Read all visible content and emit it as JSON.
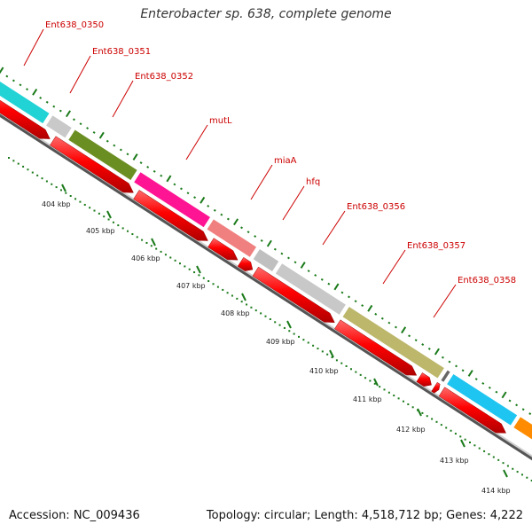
{
  "title": "Enterobacter sp. 638, complete genome",
  "footer": {
    "accession": "Accession: NC_009436",
    "summary": "Topology: circular; Length: 4,518,712 bp; Genes: 4,222"
  },
  "genes": [
    {
      "name": "Ent638_0350",
      "color": "#22d3d6"
    },
    {
      "name": "Ent638_0351",
      "color": "#c9c9c9"
    },
    {
      "name": "Ent638_0352",
      "color": "#6b8e23"
    },
    {
      "name": "mutL",
      "color": "#ff1493"
    },
    {
      "name": "miaA",
      "color": "#f08080"
    },
    {
      "name": "hfq",
      "color": "#c0c0c0"
    },
    {
      "name": "Ent638_0356",
      "color": "#c8c8c8"
    },
    {
      "name": "Ent638_0357",
      "color": "#bdb76b"
    },
    {
      "name": "Ent638_0358",
      "color": "#1ec5f0"
    }
  ],
  "kbp_ticks": [
    "404 kbp",
    "405 kbp",
    "406 kbp",
    "407 kbp",
    "408 kbp",
    "409 kbp",
    "410 kbp",
    "411 kbp",
    "412 kbp",
    "413 kbp",
    "414 kbp"
  ],
  "colors": {
    "label": "#cc0000",
    "cds": "#ff0000",
    "tick": "#1a7a1a",
    "backbone": "#999999"
  }
}
